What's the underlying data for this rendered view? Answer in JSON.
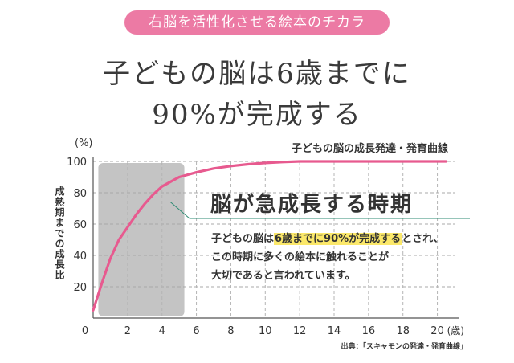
{
  "banner": "右脳を活性化させる絵本のチカラ",
  "headline_line1": "子どもの脳は6歳までに",
  "headline_line2": "90%が完成する",
  "callout": {
    "title": "脳が急成長する時期",
    "line1_before": "子どもの脳は",
    "line1_highlight": "6歳までに90%が完成する",
    "line1_after": "とされ、",
    "line2": "この時期に多くの絵本に触れることが",
    "line3": "大切であると言われています。"
  },
  "source": "出典：「スキャモンの発達・発育曲線」",
  "chart_data": {
    "type": "line",
    "title": "子どもの脳の成長発達・発育曲線",
    "ylabel": "成熟期までの成長比",
    "yunit": "(%)",
    "xunit": "(歳)",
    "xlim": [
      0,
      21
    ],
    "ylim": [
      0,
      100
    ],
    "xticks": [
      "0",
      "2",
      "4",
      "6",
      "8",
      "10",
      "12",
      "14",
      "16",
      "18",
      "20"
    ],
    "yticks": [
      "20",
      "40",
      "60",
      "80",
      "100"
    ],
    "grid": "dashed",
    "highlight_range": [
      0.3,
      5.3
    ],
    "series": [
      {
        "color": "#e75a8f",
        "x": [
          0,
          0.5,
          1,
          1.5,
          2,
          2.5,
          3,
          3.5,
          4,
          4.5,
          5,
          6,
          7,
          8,
          9,
          10,
          11,
          12,
          14,
          16,
          18,
          20,
          20.5
        ],
        "y": [
          5,
          22,
          38,
          50,
          58,
          66,
          73,
          79,
          84,
          87,
          90,
          93,
          95.5,
          97,
          98.2,
          99,
          99.6,
          100,
          100,
          100,
          100,
          100,
          100
        ]
      }
    ]
  }
}
